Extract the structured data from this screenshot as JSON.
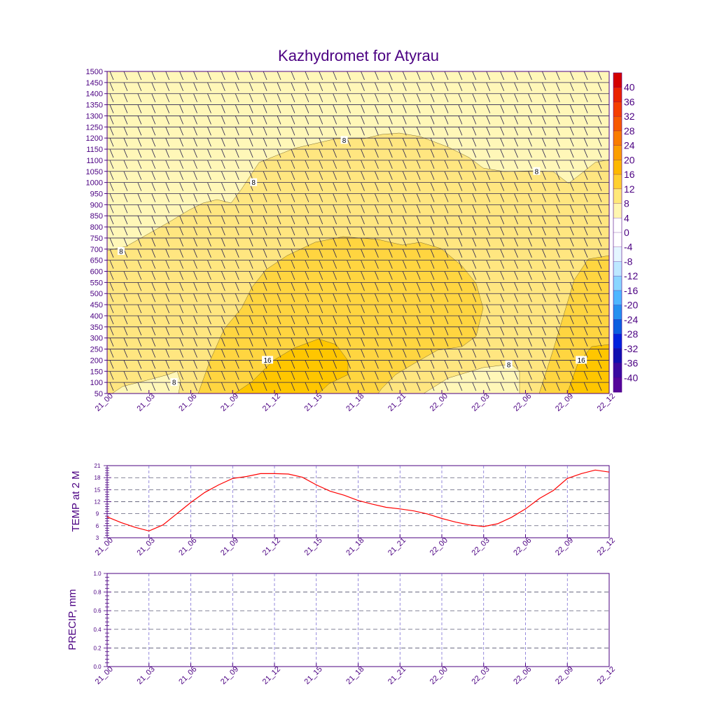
{
  "figure_title": "Kazhydromet for Atyrau",
  "chart_data": [
    {
      "type": "heatmap",
      "name": "temperature_cross_section",
      "title": "Kazhydromet for Atyrau",
      "x_tick_labels": [
        "21_00",
        "21_03",
        "21_06",
        "21_09",
        "21_12",
        "21_15",
        "21_18",
        "21_21",
        "22_00",
        "22_03",
        "22_06",
        "22_09",
        "22_12"
      ],
      "y_tick_labels": [
        "50",
        "100",
        "150",
        "200",
        "250",
        "300",
        "350",
        "400",
        "450",
        "500",
        "550",
        "600",
        "650",
        "700",
        "750",
        "800",
        "850",
        "900",
        "950",
        "1000",
        "1050",
        "1100",
        "1150",
        "1200",
        "1250",
        "1300",
        "1350",
        "1400",
        "1450",
        "1500"
      ],
      "ylim": [
        50,
        1500
      ],
      "xlim_hours": [
        0,
        36
      ],
      "contour_labels": [
        {
          "text": "8",
          "x_hour": 1.0,
          "y_level": 690
        },
        {
          "text": "8",
          "x_hour": 10.5,
          "y_level": 1000
        },
        {
          "text": "8",
          "x_hour": 17.0,
          "y_level": 1190
        },
        {
          "text": "8",
          "x_hour": 30.8,
          "y_level": 1050
        },
        {
          "text": "8",
          "x_hour": 4.8,
          "y_level": 100
        },
        {
          "text": "8",
          "x_hour": 28.8,
          "y_level": 180
        },
        {
          "text": "16",
          "x_hour": 11.5,
          "y_level": 200
        },
        {
          "text": "16",
          "x_hour": 34.0,
          "y_level": 200
        }
      ],
      "colorbar": {
        "labels": [
          "40",
          "36",
          "32",
          "28",
          "24",
          "20",
          "16",
          "12",
          "8",
          "4",
          "0",
          "-4",
          "-8",
          "-12",
          "-16",
          "-20",
          "-24",
          "-28",
          "-32",
          "-36",
          "-40"
        ],
        "colors_top_to_bottom": [
          "#d40000",
          "#ea2200",
          "#f53e00",
          "#f75a00",
          "#f97c00",
          "#fb9e00",
          "#fdb800",
          "#ffd030",
          "#ffe878",
          "#fff6b0",
          "#ffffff",
          "#ffffff",
          "#e4f6ff",
          "#bde8ff",
          "#8ad6ff",
          "#4fb6ff",
          "#2490ef",
          "#0a5ee0",
          "#0022dd",
          "#1010b0",
          "#3a0aa0",
          "#55059a"
        ]
      },
      "regions": [
        {
          "name": "cold_upper_region",
          "color": "#fff7b8"
        },
        {
          "name": "warm_8_12_region",
          "color": "#ffe680"
        },
        {
          "name": "warm_12_16_region",
          "color": "#ffd540"
        },
        {
          "name": "warm_16_plus_region",
          "color": "#ffc600"
        }
      ]
    },
    {
      "type": "line",
      "name": "temperature_2m",
      "ylabel": "TEMP at 2 M",
      "ylim": [
        3,
        21
      ],
      "y_tick_labels": [
        "3",
        "6",
        "9",
        "12",
        "15",
        "18",
        "21"
      ],
      "x_tick_labels": [
        "21_00",
        "21_03",
        "21_06",
        "21_09",
        "21_12",
        "21_15",
        "21_18",
        "21_21",
        "22_00",
        "22_03",
        "22_06",
        "22_09",
        "22_12"
      ],
      "series": [
        {
          "name": "TEMP at 2 M",
          "color": "#ff0000",
          "x_hours": [
            0,
            1,
            2,
            3,
            4,
            5,
            6,
            7,
            8,
            9,
            10,
            11,
            12,
            13,
            14,
            15,
            16,
            17,
            18,
            19,
            20,
            21,
            22,
            23,
            24,
            25,
            26,
            27,
            28,
            29,
            30,
            31,
            32,
            33,
            34,
            35,
            36
          ],
          "values": [
            8.2,
            6.8,
            5.6,
            4.7,
            6.2,
            9.0,
            11.8,
            14.3,
            16.2,
            17.8,
            18.3,
            19.0,
            19.0,
            18.9,
            18.1,
            16.2,
            14.6,
            13.6,
            12.3,
            11.4,
            10.6,
            10.2,
            9.7,
            8.9,
            7.8,
            6.9,
            6.2,
            5.8,
            6.5,
            8.1,
            10.2,
            12.8,
            14.8,
            17.8,
            19.0,
            19.9,
            19.4
          ]
        }
      ]
    },
    {
      "type": "line",
      "name": "precipitation",
      "ylabel": "PRECIP, mm",
      "ylim": [
        0.0,
        1.0
      ],
      "y_tick_labels": [
        "0.0",
        "0.2",
        "0.4",
        "0.6",
        "0.8",
        "1.0"
      ],
      "x_tick_labels": [
        "21_00",
        "21_03",
        "21_06",
        "21_09",
        "21_12",
        "21_15",
        "21_18",
        "21_21",
        "22_00",
        "22_03",
        "22_06",
        "22_09",
        "22_12"
      ],
      "series": []
    }
  ]
}
